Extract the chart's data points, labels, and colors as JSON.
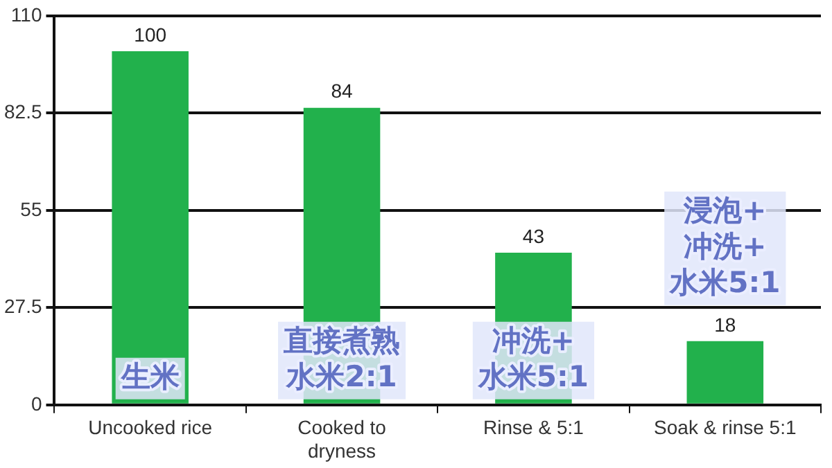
{
  "chart_data": {
    "type": "bar",
    "categories": [
      "Uncooked rice",
      "Cooked to\ndryness",
      "Rinse & 5:1",
      "Soak & rinse 5:1"
    ],
    "values": [
      100,
      84,
      43,
      18
    ],
    "color": "#22b14c",
    "data_labels": true,
    "ylim": [
      0,
      110
    ],
    "yticks": [
      0,
      27.5,
      55,
      82.5,
      110
    ],
    "grid": "y",
    "annotations": [
      "生米",
      "直接煮熟水米2:1",
      "冲洗+水米5:1",
      "浸泡+冲洗+水米5:1"
    ]
  }
}
